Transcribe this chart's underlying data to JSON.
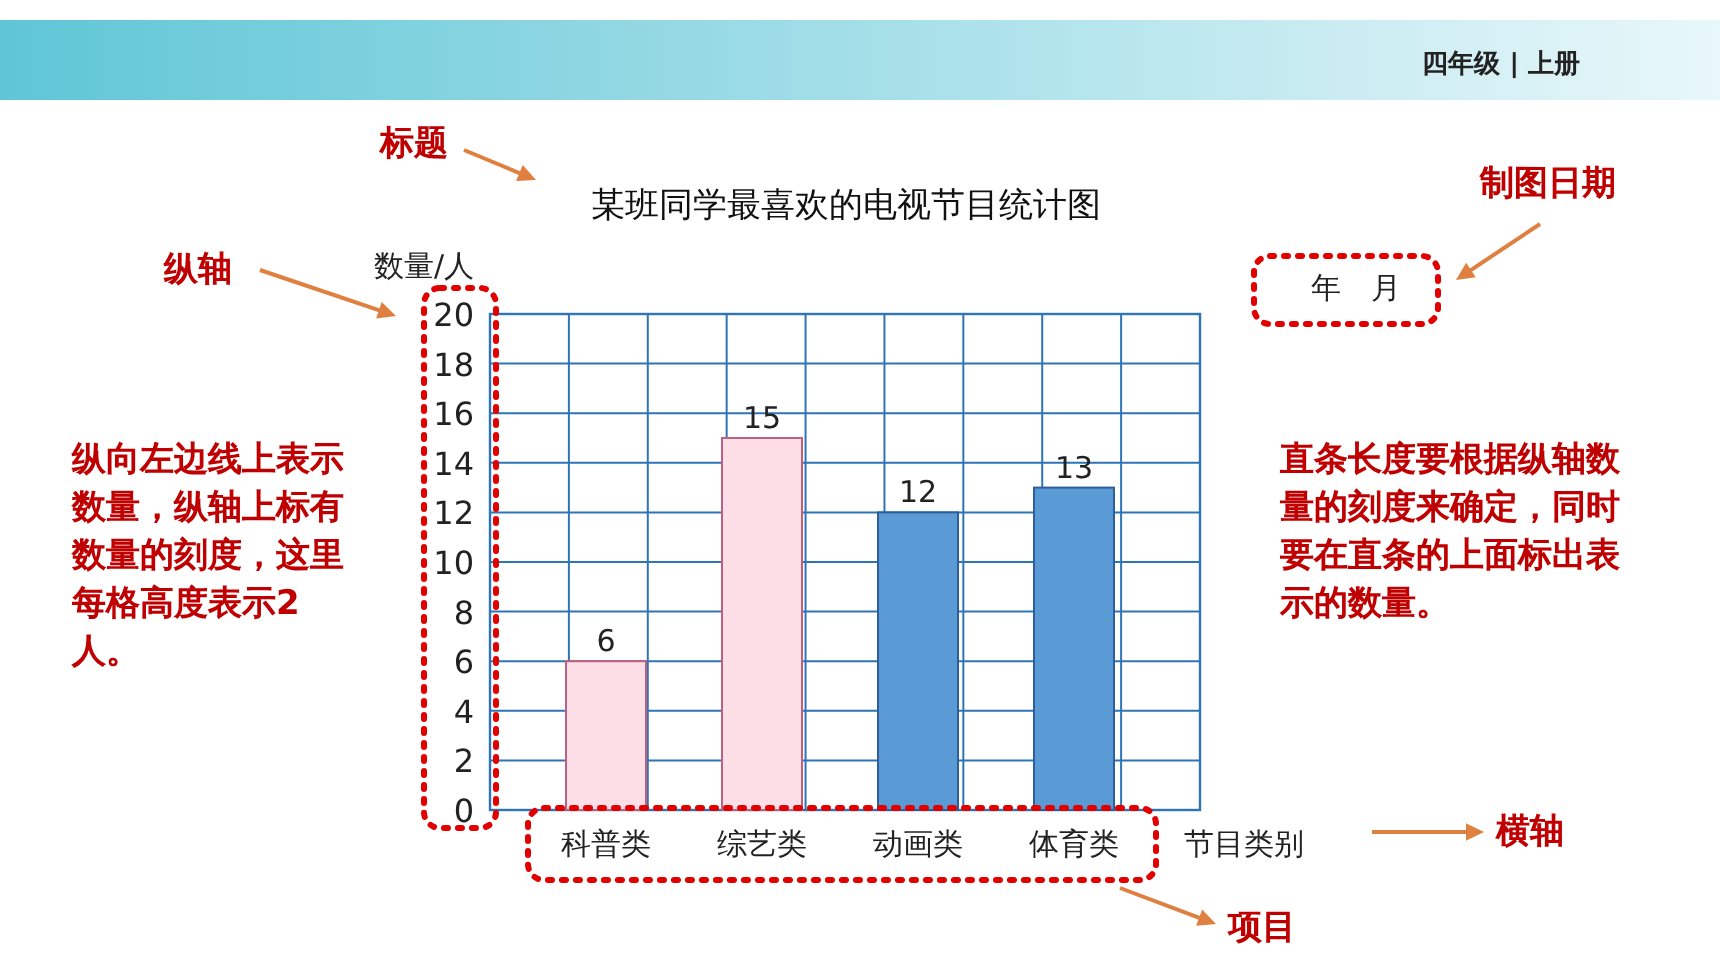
{
  "chart_data": {
    "type": "bar",
    "title": "某班同学最喜欢的电视节目统计图",
    "xlabel": "节目类别",
    "ylabel": "数量/人",
    "categories": [
      "科普类",
      "综艺类",
      "动画类",
      "体育类"
    ],
    "values": [
      6,
      15,
      12,
      13
    ],
    "colors": [
      "#fddde6",
      "#fddde6",
      "#5b9bd5",
      "#5b9bd5"
    ],
    "ylim": [
      0,
      20
    ],
    "yticks": [
      0,
      2,
      4,
      6,
      8,
      10,
      12,
      14,
      16,
      18,
      20
    ],
    "grid": true,
    "data_labels": true,
    "annotations": [
      "标题",
      "纵轴",
      "制图日期",
      "年　月",
      "纵向左边线上表示数量，纵轴上标有数量的刻度，这里每格高度表示2人。",
      "直条长度要根据纵轴数量的刻度来确定，同时要在直条的上面标出表示的数量。",
      "横轴",
      "项目",
      "四年级 | 上册"
    ]
  }
}
